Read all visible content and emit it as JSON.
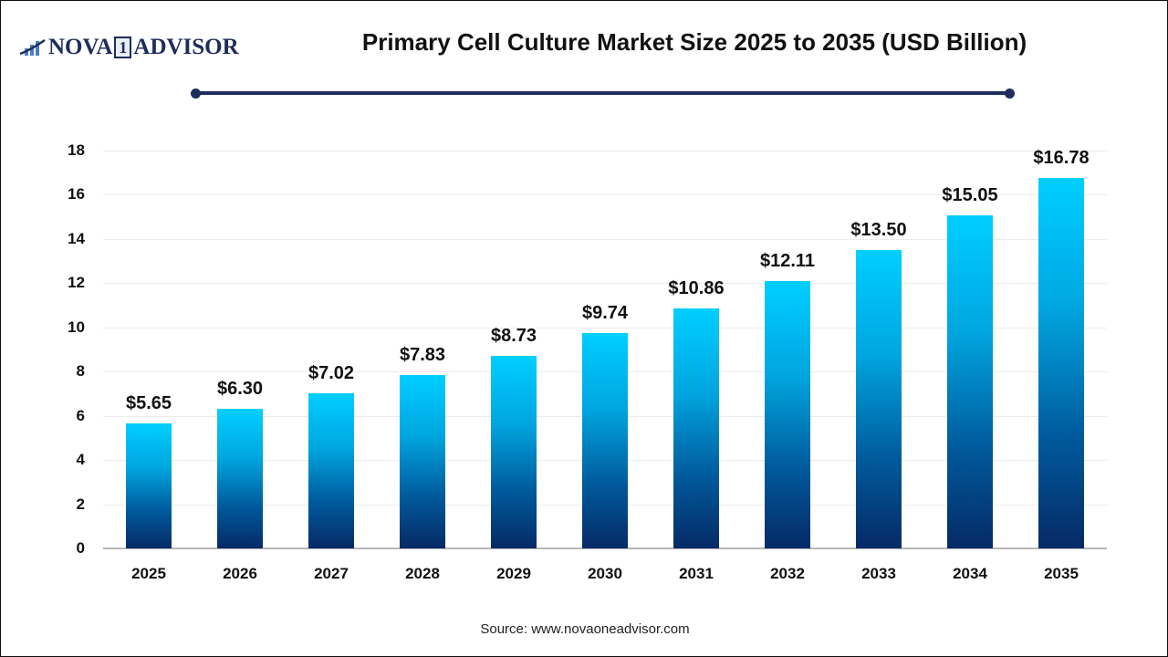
{
  "logo": {
    "pre": "NOVA",
    "one": "1",
    "post": "ADVISOR",
    "icon": "bar-chart-swoosh-icon"
  },
  "header": {
    "title": "Primary Cell Culture Market Size 2025 to 2035 (USD Billion)"
  },
  "footer": {
    "source": "Source: www.novaoneadvisor.com"
  },
  "colors": {
    "brand": "#1f2d5c",
    "bar_top": "#00cfff",
    "bar_bottom": "#062a66"
  },
  "chart_data": {
    "type": "bar",
    "title": "Primary Cell Culture Market Size 2025 to 2035 (USD Billion)",
    "xlabel": "",
    "ylabel": "",
    "categories": [
      "2025",
      "2026",
      "2027",
      "2028",
      "2029",
      "2030",
      "2031",
      "2032",
      "2033",
      "2034",
      "2035"
    ],
    "values": [
      5.65,
      6.3,
      7.02,
      7.83,
      8.73,
      9.74,
      10.86,
      12.11,
      13.5,
      15.05,
      16.78
    ],
    "labels": [
      "$5.65",
      "$6.30",
      "$7.02",
      "$7.83",
      "$8.73",
      "$9.74",
      "$10.86",
      "$12.11",
      "$13.50",
      "$15.05",
      "$16.78"
    ],
    "ylim": [
      0,
      18
    ],
    "yticks": [
      "0",
      "2",
      "4",
      "6",
      "8",
      "10",
      "12",
      "14",
      "16",
      "18"
    ],
    "grid": true,
    "legend": null
  }
}
